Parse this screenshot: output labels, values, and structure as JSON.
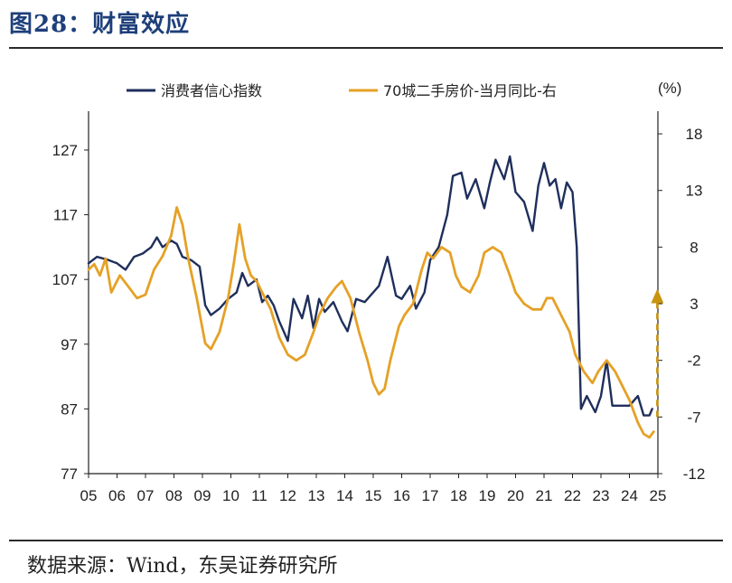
{
  "title": "图28：财富效应",
  "source": "数据来源：Wind，东吴证券研究所",
  "chart_data": {
    "type": "line",
    "x_label": "",
    "x_ticks": [
      "05",
      "06",
      "07",
      "08",
      "09",
      "10",
      "11",
      "12",
      "13",
      "14",
      "15",
      "16",
      "17",
      "18",
      "19",
      "20",
      "21",
      "22",
      "23",
      "24",
      "25"
    ],
    "y_left": {
      "ylim": [
        77,
        133
      ],
      "ticks": [
        77,
        87,
        97,
        107,
        117,
        127
      ]
    },
    "y_right": {
      "ylim": [
        -12,
        20
      ],
      "ticks": [
        -12,
        -7,
        -2,
        3,
        8,
        13,
        18
      ],
      "unit": "(%)"
    },
    "legend_position": "top",
    "series": [
      {
        "name": "消费者信心指数",
        "axis": "left",
        "color": "#1f2f5c",
        "points": [
          [
            2005.0,
            109.5
          ],
          [
            2005.3,
            110.5
          ],
          [
            2005.7,
            110.0
          ],
          [
            2006.0,
            109.5
          ],
          [
            2006.3,
            108.5
          ],
          [
            2006.6,
            110.5
          ],
          [
            2006.9,
            111.0
          ],
          [
            2007.2,
            112.0
          ],
          [
            2007.4,
            113.5
          ],
          [
            2007.6,
            112.0
          ],
          [
            2007.9,
            113.0
          ],
          [
            2008.1,
            112.5
          ],
          [
            2008.3,
            110.5
          ],
          [
            2008.6,
            110.0
          ],
          [
            2008.9,
            109.0
          ],
          [
            2009.1,
            103.0
          ],
          [
            2009.3,
            101.5
          ],
          [
            2009.6,
            102.5
          ],
          [
            2009.9,
            104.0
          ],
          [
            2010.2,
            105.0
          ],
          [
            2010.4,
            108.0
          ],
          [
            2010.6,
            106.0
          ],
          [
            2010.9,
            107.0
          ],
          [
            2011.1,
            103.5
          ],
          [
            2011.3,
            104.5
          ],
          [
            2011.5,
            103.0
          ],
          [
            2011.7,
            100.5
          ],
          [
            2011.9,
            98.5
          ],
          [
            2012.0,
            97.5
          ],
          [
            2012.2,
            104.0
          ],
          [
            2012.5,
            101.0
          ],
          [
            2012.7,
            104.5
          ],
          [
            2012.9,
            99.5
          ],
          [
            2013.1,
            104.0
          ],
          [
            2013.3,
            102.0
          ],
          [
            2013.6,
            103.5
          ],
          [
            2013.9,
            100.5
          ],
          [
            2014.1,
            99.0
          ],
          [
            2014.4,
            104.0
          ],
          [
            2014.7,
            103.5
          ],
          [
            2015.0,
            105.0
          ],
          [
            2015.2,
            106.0
          ],
          [
            2015.5,
            110.5
          ],
          [
            2015.8,
            104.5
          ],
          [
            2016.0,
            104.0
          ],
          [
            2016.3,
            106.0
          ],
          [
            2016.5,
            102.5
          ],
          [
            2016.8,
            105.0
          ],
          [
            2017.0,
            110.0
          ],
          [
            2017.3,
            112.0
          ],
          [
            2017.6,
            117.0
          ],
          [
            2017.8,
            123.0
          ],
          [
            2018.1,
            123.5
          ],
          [
            2018.3,
            119.5
          ],
          [
            2018.6,
            122.5
          ],
          [
            2018.9,
            118.0
          ],
          [
            2019.1,
            122.0
          ],
          [
            2019.3,
            125.5
          ],
          [
            2019.6,
            122.5
          ],
          [
            2019.8,
            126.0
          ],
          [
            2020.0,
            120.5
          ],
          [
            2020.3,
            119.0
          ],
          [
            2020.6,
            114.5
          ],
          [
            2020.8,
            121.5
          ],
          [
            2021.0,
            125.0
          ],
          [
            2021.2,
            121.5
          ],
          [
            2021.4,
            122.5
          ],
          [
            2021.6,
            118.0
          ],
          [
            2021.8,
            122.0
          ],
          [
            2022.0,
            120.5
          ],
          [
            2022.15,
            112.0
          ],
          [
            2022.3,
            87.0
          ],
          [
            2022.5,
            89.0
          ],
          [
            2022.8,
            86.5
          ],
          [
            2023.0,
            89.0
          ],
          [
            2023.2,
            94.5
          ],
          [
            2023.4,
            87.5
          ],
          [
            2023.7,
            87.5
          ],
          [
            2024.0,
            87.5
          ],
          [
            2024.3,
            89.0
          ],
          [
            2024.5,
            86.0
          ],
          [
            2024.7,
            86.0
          ],
          [
            2024.8,
            87.0
          ]
        ]
      },
      {
        "name": "70城二手房价-当月同比-右",
        "axis": "right",
        "color": "#e5a126",
        "points": [
          [
            2005.0,
            6.0
          ],
          [
            2005.2,
            6.5
          ],
          [
            2005.4,
            5.5
          ],
          [
            2005.6,
            7.0
          ],
          [
            2005.8,
            4.0
          ],
          [
            2006.1,
            5.5
          ],
          [
            2006.4,
            4.5
          ],
          [
            2006.7,
            3.5
          ],
          [
            2007.0,
            3.8
          ],
          [
            2007.3,
            6.0
          ],
          [
            2007.6,
            7.2
          ],
          [
            2007.9,
            9.0
          ],
          [
            2008.1,
            11.5
          ],
          [
            2008.3,
            10.0
          ],
          [
            2008.5,
            7.0
          ],
          [
            2008.8,
            3.5
          ],
          [
            2009.1,
            -0.5
          ],
          [
            2009.3,
            -1.0
          ],
          [
            2009.6,
            0.5
          ],
          [
            2009.9,
            3.5
          ],
          [
            2010.1,
            6.5
          ],
          [
            2010.3,
            10.0
          ],
          [
            2010.5,
            7.0
          ],
          [
            2010.7,
            5.5
          ],
          [
            2010.9,
            5.0
          ],
          [
            2011.1,
            4.0
          ],
          [
            2011.4,
            2.5
          ],
          [
            2011.7,
            0.0
          ],
          [
            2012.0,
            -1.5
          ],
          [
            2012.3,
            -2.0
          ],
          [
            2012.6,
            -1.5
          ],
          [
            2012.9,
            0.5
          ],
          [
            2013.1,
            2.0
          ],
          [
            2013.4,
            3.5
          ],
          [
            2013.7,
            4.5
          ],
          [
            2013.9,
            5.0
          ],
          [
            2014.2,
            3.5
          ],
          [
            2014.5,
            0.5
          ],
          [
            2014.8,
            -2.0
          ],
          [
            2015.0,
            -4.0
          ],
          [
            2015.2,
            -5.0
          ],
          [
            2015.4,
            -4.5
          ],
          [
            2015.6,
            -2.0
          ],
          [
            2015.9,
            1.0
          ],
          [
            2016.1,
            2.0
          ],
          [
            2016.4,
            3.0
          ],
          [
            2016.7,
            6.0
          ],
          [
            2016.9,
            7.5
          ],
          [
            2017.1,
            7.0
          ],
          [
            2017.4,
            8.0
          ],
          [
            2017.7,
            7.5
          ],
          [
            2017.9,
            5.5
          ],
          [
            2018.1,
            4.5
          ],
          [
            2018.4,
            4.0
          ],
          [
            2018.7,
            5.5
          ],
          [
            2018.9,
            7.5
          ],
          [
            2019.2,
            8.0
          ],
          [
            2019.5,
            7.5
          ],
          [
            2019.8,
            5.5
          ],
          [
            2020.0,
            4.0
          ],
          [
            2020.3,
            3.0
          ],
          [
            2020.6,
            2.5
          ],
          [
            2020.9,
            2.5
          ],
          [
            2021.1,
            3.5
          ],
          [
            2021.3,
            3.5
          ],
          [
            2021.6,
            2.0
          ],
          [
            2021.9,
            0.5
          ],
          [
            2022.1,
            -1.5
          ],
          [
            2022.4,
            -3.0
          ],
          [
            2022.7,
            -4.0
          ],
          [
            2022.9,
            -3.0
          ],
          [
            2023.2,
            -2.0
          ],
          [
            2023.5,
            -3.0
          ],
          [
            2023.8,
            -4.5
          ],
          [
            2024.0,
            -5.5
          ],
          [
            2024.3,
            -7.5
          ],
          [
            2024.5,
            -8.5
          ],
          [
            2024.7,
            -8.8
          ],
          [
            2024.85,
            -8.3
          ]
        ]
      }
    ],
    "annotations": [
      {
        "type": "dashed-arrow",
        "color": "#c9940f",
        "x": 2024.98,
        "from_right": -7.0,
        "to_right": 4.0
      }
    ]
  }
}
